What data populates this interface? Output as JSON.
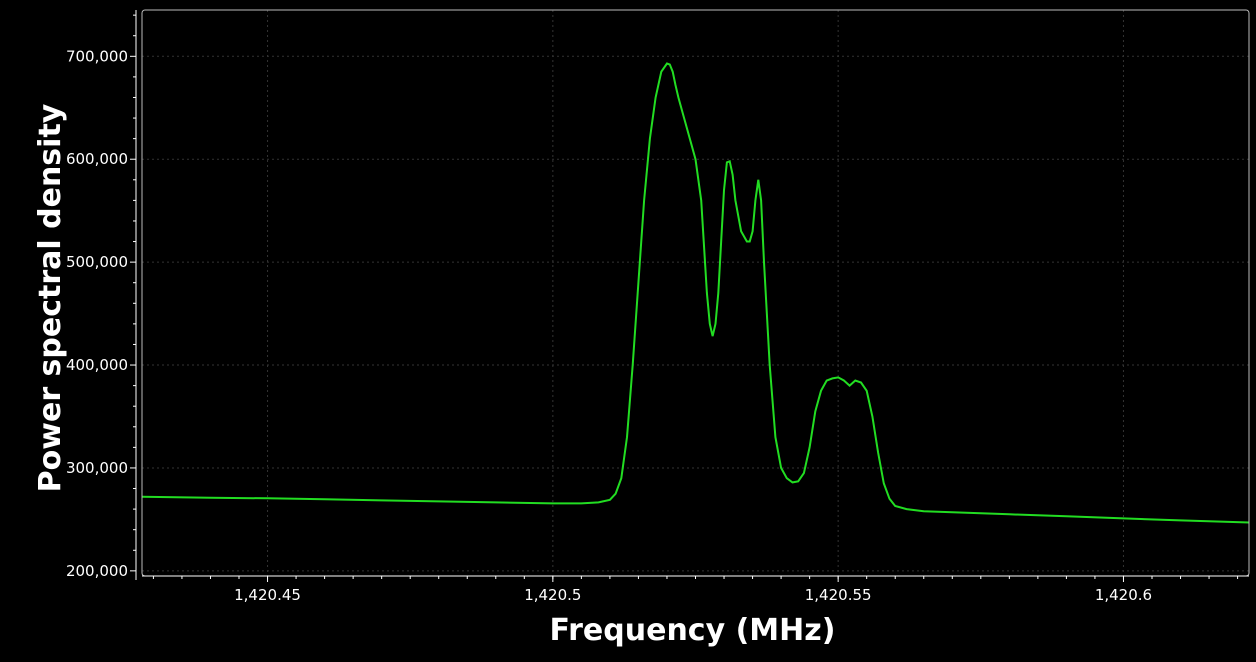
{
  "chart_data": {
    "type": "line",
    "title": "",
    "xlabel": "Frequency (MHz)",
    "ylabel": "Power spectral density",
    "xlim": [
      1420.428,
      1420.622
    ],
    "ylim": [
      195000,
      745000
    ],
    "grid": true,
    "legend": "none",
    "x_ticks": [
      {
        "value": 1420.45,
        "label": "1,420.45"
      },
      {
        "value": 1420.5,
        "label": "1,420.5"
      },
      {
        "value": 1420.55,
        "label": "1,420.55"
      },
      {
        "value": 1420.6,
        "label": "1,420.6"
      }
    ],
    "y_ticks": [
      {
        "value": 200000,
        "label": "200,000"
      },
      {
        "value": 300000,
        "label": "300,000"
      },
      {
        "value": 400000,
        "label": "400,000"
      },
      {
        "value": 500000,
        "label": "500,000"
      },
      {
        "value": 600000,
        "label": "600,000"
      },
      {
        "value": 700000,
        "label": "700,000"
      }
    ],
    "colors": {
      "background": "#000000",
      "line": "#22dd22",
      "grid": "#333333",
      "frame": "#bbbbbb",
      "text": "#ffffff"
    },
    "series": [
      {
        "x": [
          1420.428,
          1420.44,
          1420.45,
          1420.46,
          1420.47,
          1420.48,
          1420.49,
          1420.5,
          1420.505,
          1420.508,
          1420.51,
          1420.511,
          1420.512,
          1420.513,
          1420.514,
          1420.515,
          1420.516,
          1420.517,
          1420.518,
          1420.519,
          1420.52,
          1420.5205,
          1420.521,
          1420.5215,
          1420.522,
          1420.523,
          1420.524,
          1420.525,
          1420.526,
          1420.527,
          1420.5275,
          1420.528,
          1420.5285,
          1420.529,
          1420.53,
          1420.5305,
          1420.531,
          1420.5315,
          1420.532,
          1420.533,
          1420.534,
          1420.5345,
          1420.535,
          1420.5355,
          1420.536,
          1420.5365,
          1420.537,
          1420.538,
          1420.539,
          1420.54,
          1420.541,
          1420.542,
          1420.543,
          1420.544,
          1420.545,
          1420.546,
          1420.547,
          1420.548,
          1420.549,
          1420.55,
          1420.551,
          1420.552,
          1420.553,
          1420.554,
          1420.555,
          1420.556,
          1420.557,
          1420.558,
          1420.559,
          1420.56,
          1420.562,
          1420.565,
          1420.57,
          1420.58,
          1420.59,
          1420.6,
          1420.61,
          1420.622
        ],
        "y": [
          272000,
          271000,
          270500,
          269500,
          268500,
          267500,
          266500,
          265500,
          265500,
          266500,
          269000,
          275000,
          290000,
          330000,
          400000,
          480000,
          560000,
          620000,
          660000,
          685000,
          693000,
          692000,
          685000,
          672000,
          660000,
          640000,
          620000,
          600000,
          560000,
          470000,
          440000,
          428000,
          440000,
          470000,
          570000,
          597000,
          598000,
          585000,
          560000,
          530000,
          520000,
          520000,
          530000,
          560000,
          580000,
          560000,
          500000,
          400000,
          330000,
          300000,
          290000,
          286000,
          287000,
          295000,
          320000,
          355000,
          375000,
          385000,
          387000,
          388000,
          385000,
          380000,
          385000,
          383000,
          375000,
          350000,
          315000,
          285000,
          270000,
          263000,
          260000,
          258000,
          257000,
          255000,
          253000,
          251000,
          249000,
          247000
        ]
      }
    ]
  }
}
